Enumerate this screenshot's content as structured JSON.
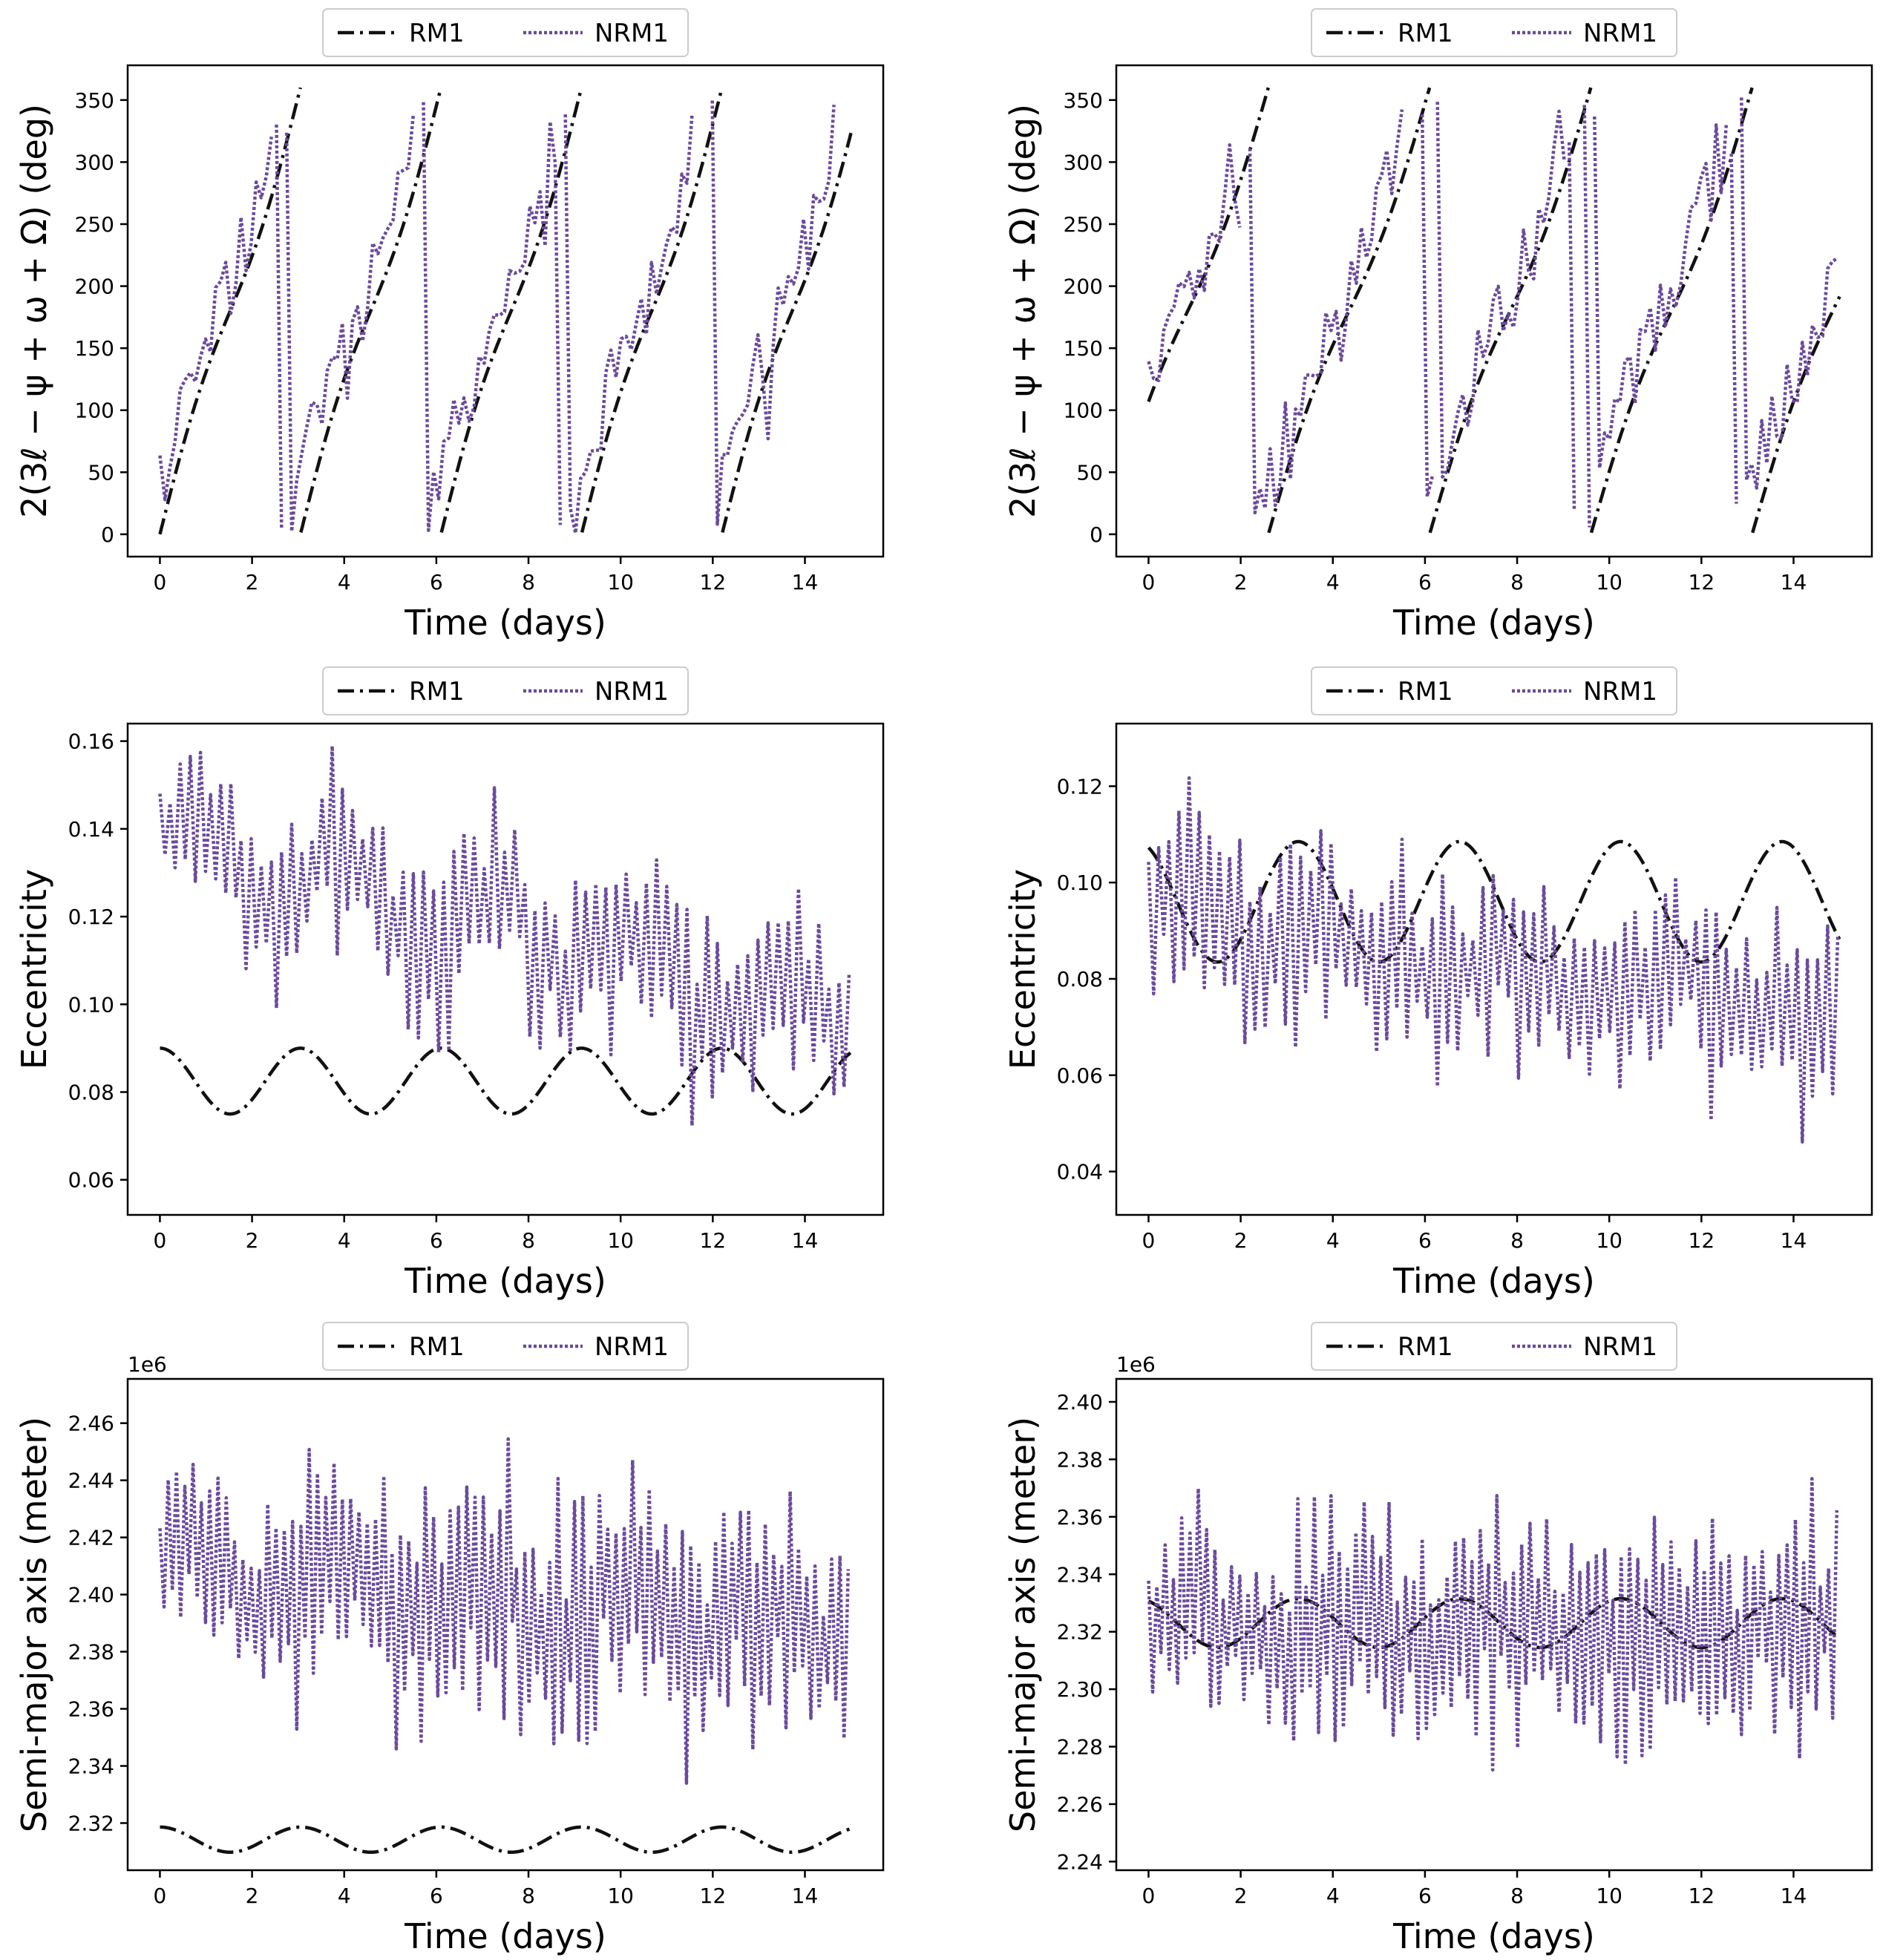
{
  "colors": {
    "rm": "#111111",
    "nrm": "#6a4a9c",
    "axes": "#000000",
    "background": "#ffffff"
  },
  "legend": {
    "rm_label": "RM1",
    "nrm_label": "NRM1",
    "placement": "top-center, above each panel"
  },
  "chart_data": [
    {
      "id": "phase-left",
      "type": "line",
      "xlabel": "Time (days)",
      "ylabel": "2(3ℓ − ψ + ω + Ω) (deg)",
      "xlim": [
        -0.7,
        15.7
      ],
      "ylim": [
        -18,
        378
      ],
      "xticks": [
        0,
        2,
        4,
        6,
        8,
        10,
        12,
        14
      ],
      "yticks": [
        0,
        50,
        100,
        150,
        200,
        250,
        300,
        350
      ],
      "offset_text": "",
      "series": [
        {
          "name": "RM1",
          "style": "dashdot",
          "kind": "phase",
          "t0": 0.0,
          "v0": 0,
          "T": 3.05,
          "swing": 0.25,
          "start": 0,
          "end": 15
        },
        {
          "name": "NRM1",
          "style": "dotted",
          "kind": "phase_noisy",
          "t0": -0.55,
          "v0": 0,
          "T": 3.05,
          "swing": 0.25,
          "amp": 60,
          "step": 0.11,
          "start": 0,
          "end": 15,
          "seed": 11
        }
      ]
    },
    {
      "id": "phase-right",
      "type": "line",
      "xlabel": "Time (days)",
      "ylabel": "2(3ℓ − ψ + ω + Ω) (deg)",
      "xlim": [
        -0.7,
        15.7
      ],
      "ylim": [
        -18,
        378
      ],
      "xticks": [
        0,
        2,
        4,
        6,
        8,
        10,
        12,
        14
      ],
      "yticks": [
        0,
        50,
        100,
        150,
        200,
        250,
        300,
        350
      ],
      "offset_text": "",
      "series": [
        {
          "name": "RM1",
          "style": "dashdot",
          "kind": "phase",
          "t0": -0.9,
          "v0": 0,
          "T": 3.5,
          "swing": 0.25,
          "start": 0,
          "end": 15
        },
        {
          "name": "NRM1",
          "style": "dotted",
          "kind": "phase_noisy",
          "t0": -1.45,
          "v0": 0,
          "T": 3.5,
          "swing": 0.25,
          "amp": 70,
          "step": 0.11,
          "start": 0,
          "end": 15,
          "seed": 23
        }
      ]
    },
    {
      "id": "ecc-left",
      "type": "line",
      "xlabel": "Time (days)",
      "ylabel": "Eccentricity",
      "xlim": [
        -0.7,
        15.7
      ],
      "ylim": [
        0.052,
        0.164
      ],
      "xticks": [
        0,
        2,
        4,
        6,
        8,
        10,
        12,
        14
      ],
      "yticks": [
        0.06,
        0.08,
        0.1,
        0.12,
        0.14,
        0.16
      ],
      "offset_text": "",
      "series": [
        {
          "name": "RM1",
          "style": "dashdot",
          "kind": "sine",
          "mean": 0.0825,
          "amp": 0.0075,
          "T": 3.05,
          "phase": 0.0,
          "start": 0,
          "end": 15
        },
        {
          "name": "NRM1",
          "style": "dotted",
          "kind": "noisy",
          "base_start": 0.138,
          "base_end": 0.097,
          "wobble": 0.008,
          "wobbleT": 3.2,
          "amp": 0.028,
          "step": 0.11,
          "start": 0,
          "end": 15,
          "seed": 37
        }
      ]
    },
    {
      "id": "ecc-right",
      "type": "line",
      "xlabel": "Time (days)",
      "ylabel": "Eccentricity",
      "xlim": [
        -0.7,
        15.7
      ],
      "ylim": [
        0.031,
        0.133
      ],
      "xticks": [
        0,
        2,
        4,
        6,
        8,
        10,
        12,
        14
      ],
      "yticks": [
        0.04,
        0.06,
        0.08,
        0.1,
        0.12
      ],
      "offset_text": "",
      "series": [
        {
          "name": "RM1",
          "style": "dashdot",
          "kind": "sine",
          "mean": 0.096,
          "amp": 0.0125,
          "T": 3.5,
          "phase": 0.45,
          "start": 0,
          "end": 15
        },
        {
          "name": "NRM1",
          "style": "dotted",
          "kind": "noisy",
          "base_start": 0.092,
          "base_end": 0.073,
          "wobble": 0.004,
          "wobbleT": 3.5,
          "amp": 0.028,
          "step": 0.11,
          "start": 0,
          "end": 15,
          "seed": 41
        }
      ]
    },
    {
      "id": "sma-left",
      "type": "line",
      "xlabel": "Time (days)",
      "ylabel": "Semi-major axis (meter)",
      "xlim": [
        -0.7,
        15.7
      ],
      "ylim": [
        2.3035,
        2.4755
      ],
      "xticks": [
        0,
        2,
        4,
        6,
        8,
        10,
        12,
        14
      ],
      "yticks": [
        2.32,
        2.34,
        2.36,
        2.38,
        2.4,
        2.42,
        2.44,
        2.46
      ],
      "offset_text": "1e6",
      "series": [
        {
          "name": "RM1",
          "style": "dashdot",
          "kind": "sine",
          "mean": 2.3142,
          "amp": 0.0044,
          "T": 3.05,
          "phase": 0.0,
          "start": 0,
          "end": 15
        },
        {
          "name": "NRM1",
          "style": "dotted",
          "kind": "noisy",
          "base_start": 2.41,
          "base_end": 2.388,
          "wobble": 0.01,
          "wobbleT": 3.1,
          "amp": 0.055,
          "step": 0.09,
          "start": 0,
          "end": 15,
          "seed": 53
        }
      ]
    },
    {
      "id": "sma-right",
      "type": "line",
      "xlabel": "Time (days)",
      "ylabel": "Semi-major axis (meter)",
      "xlim": [
        -0.7,
        15.7
      ],
      "ylim": [
        2.237,
        2.408
      ],
      "xticks": [
        0,
        2,
        4,
        6,
        8,
        10,
        12,
        14
      ],
      "yticks": [
        2.24,
        2.26,
        2.28,
        2.3,
        2.32,
        2.34,
        2.36,
        2.38,
        2.4
      ],
      "offset_text": "1e6",
      "series": [
        {
          "name": "RM1",
          "style": "dashdot",
          "kind": "sine",
          "mean": 2.323,
          "amp": 0.0085,
          "T": 3.5,
          "phase": 0.45,
          "start": 0,
          "end": 15
        },
        {
          "name": "NRM1",
          "style": "dotted",
          "kind": "noisy",
          "base_start": 2.322,
          "base_end": 2.322,
          "wobble": 0.004,
          "wobbleT": 3.5,
          "amp": 0.052,
          "step": 0.09,
          "start": 0,
          "end": 15,
          "seed": 67
        }
      ]
    }
  ]
}
